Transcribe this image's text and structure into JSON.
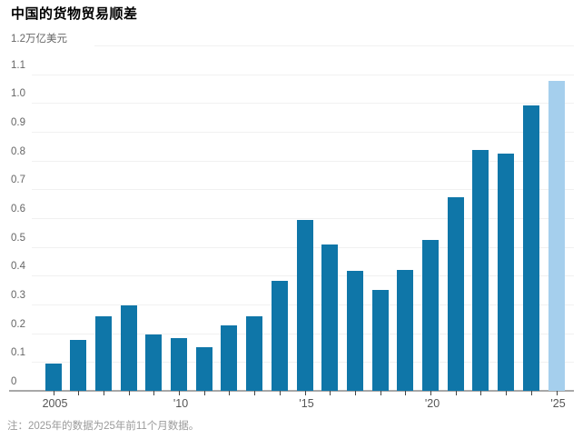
{
  "title": "中国的货物贸易顺差",
  "note": "注：2025年的数据为25年前11个月数据。",
  "colors": {
    "bar": "#0f76a8",
    "bar_highlight": "#a5cfed",
    "gridline": "#f1f1f1",
    "axis": "#a8a8a8",
    "tick": "#444444",
    "title_text": "#000000",
    "axis_label_text": "#666666",
    "note_text": "#9b9b9b"
  },
  "chart_data": {
    "type": "bar",
    "title": "中国的货物贸易顺差",
    "unit": "万亿美元",
    "categories": [
      2005,
      2006,
      2007,
      2008,
      2009,
      2010,
      2011,
      2012,
      2013,
      2014,
      2015,
      2016,
      2017,
      2018,
      2019,
      2020,
      2021,
      2022,
      2023,
      2024,
      2025
    ],
    "values": [
      0.095,
      0.176,
      0.26,
      0.298,
      0.195,
      0.183,
      0.152,
      0.227,
      0.259,
      0.382,
      0.594,
      0.508,
      0.417,
      0.351,
      0.42,
      0.523,
      0.673,
      0.837,
      0.824,
      0.99,
      1.077
    ],
    "highlight_index": 20,
    "highlight_note": "2025 bar shown in light blue (partial-year data)",
    "ylim": [
      0,
      1.2
    ],
    "ytick_step": 0.1,
    "ytick_labels": [
      "0",
      "0.1",
      "0.2",
      "0.3",
      "0.4",
      "0.5",
      "0.6",
      "0.7",
      "0.8",
      "0.9",
      "1.0",
      "1.1",
      "1.2"
    ],
    "xticks": [
      {
        "year": 2005,
        "label": "2005"
      },
      {
        "year": 2010,
        "label": "'10"
      },
      {
        "year": 2015,
        "label": "'15"
      },
      {
        "year": 2020,
        "label": "'20"
      },
      {
        "year": 2025,
        "label": "'25"
      }
    ],
    "grid": true,
    "legend": "none",
    "xlabel": "",
    "ylabel": "万亿美元",
    "note": "注：2025年的数据为25年前11个月数据。"
  }
}
